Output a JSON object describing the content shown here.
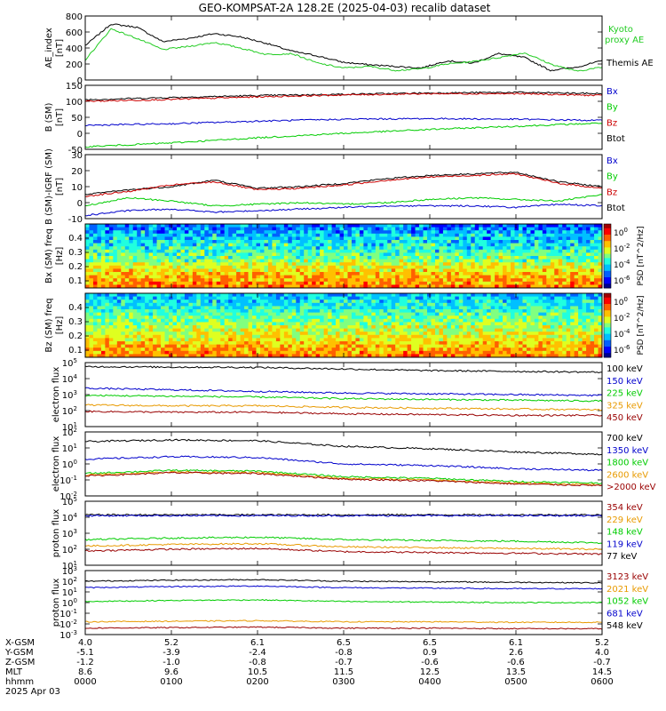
{
  "title": "GEO-KOMPSAT-2A 128.2E (2025-04-03) recalib dataset",
  "colors": {
    "black": "#000000",
    "green": "#00cc00",
    "blue": "#0000cc",
    "red": "#cc0000",
    "orange": "#e89a00",
    "darkred": "#990000",
    "lime": "#00dd44"
  },
  "chart_data": [
    {
      "type": "line",
      "ylabel": "AE_index [nT]",
      "ylim": [
        0,
        800
      ],
      "yticks": [
        "800",
        "600",
        "400",
        "200",
        "0"
      ],
      "legend": [
        {
          "name": "Kyoto proxy AE",
          "color": "#22cc22"
        },
        {
          "name": "Themis AE",
          "color": "#000000"
        }
      ],
      "series": [
        {
          "name": "Themis AE",
          "x": [
            0,
            0.3,
            0.6,
            0.9,
            1.2,
            1.5,
            1.8,
            2.1,
            2.4,
            2.7,
            3.0,
            3.3,
            3.6,
            3.9,
            4.2,
            4.5,
            4.8,
            5.1,
            5.4,
            5.7,
            6.0
          ],
          "values": [
            430,
            700,
            660,
            480,
            520,
            580,
            540,
            460,
            360,
            300,
            220,
            190,
            170,
            150,
            240,
            210,
            330,
            280,
            120,
            160,
            240
          ]
        },
        {
          "name": "Kyoto proxy AE",
          "x": [
            0,
            0.3,
            0.6,
            0.9,
            1.2,
            1.5,
            1.8,
            2.1,
            2.4,
            2.7,
            3.0,
            3.3,
            3.6,
            3.9,
            4.2,
            4.5,
            4.8,
            5.1,
            5.4,
            5.7,
            6.0
          ],
          "values": [
            250,
            640,
            520,
            380,
            420,
            470,
            400,
            320,
            330,
            210,
            150,
            170,
            120,
            140,
            200,
            230,
            280,
            340,
            200,
            110,
            160
          ]
        }
      ]
    },
    {
      "type": "line",
      "ylabel": "B (SM) [nT]",
      "ylim": [
        -50,
        150
      ],
      "yticks": [
        "150",
        "100",
        "50",
        "0",
        "-50"
      ],
      "legend": [
        {
          "name": "Bx",
          "color": "#0000cc"
        },
        {
          "name": "By",
          "color": "#00cc00"
        },
        {
          "name": "Bz",
          "color": "#cc0000"
        },
        {
          "name": "Btot",
          "color": "#000000"
        }
      ],
      "series": [
        {
          "name": "Btot",
          "x": [
            0,
            1,
            2,
            3,
            4,
            5,
            6
          ],
          "values": [
            105,
            112,
            118,
            122,
            126,
            128,
            124
          ]
        },
        {
          "name": "Bz",
          "x": [
            0,
            1,
            2,
            3,
            4,
            5,
            6
          ],
          "values": [
            100,
            106,
            114,
            120,
            124,
            124,
            118
          ]
        },
        {
          "name": "Bx",
          "x": [
            0,
            1,
            2,
            3,
            4,
            5,
            6
          ],
          "values": [
            25,
            30,
            38,
            44,
            46,
            44,
            40
          ]
        },
        {
          "name": "By",
          "x": [
            0,
            1,
            2,
            3,
            4,
            5,
            6
          ],
          "values": [
            -42,
            -30,
            -14,
            0,
            12,
            22,
            32
          ]
        }
      ]
    },
    {
      "type": "line",
      "ylabel": "B (SM)-IGRF (SM) [nT]",
      "ylim": [
        -10,
        30
      ],
      "yticks": [
        "30",
        "20",
        "10",
        "0",
        "-10"
      ],
      "legend": [
        {
          "name": "Bx",
          "color": "#0000cc"
        },
        {
          "name": "By",
          "color": "#00cc00"
        },
        {
          "name": "Bz",
          "color": "#cc0000"
        },
        {
          "name": "Btot",
          "color": "#000000"
        }
      ],
      "series": [
        {
          "name": "Btot",
          "x": [
            0,
            0.5,
            1,
            1.5,
            2,
            2.5,
            3,
            3.5,
            4,
            4.5,
            5,
            5.5,
            6
          ],
          "values": [
            5,
            8,
            10,
            14,
            9,
            10,
            12,
            15,
            17,
            18,
            19,
            13,
            10
          ]
        },
        {
          "name": "Bz",
          "x": [
            0,
            0.5,
            1,
            1.5,
            2,
            2.5,
            3,
            3.5,
            4,
            4.5,
            5,
            5.5,
            6
          ],
          "values": [
            4,
            7,
            11,
            13,
            8,
            9,
            11,
            14,
            16,
            17,
            18,
            12,
            9
          ]
        },
        {
          "name": "By",
          "x": [
            0,
            0.5,
            1,
            1.5,
            2,
            2.5,
            3,
            3.5,
            4,
            4.5,
            5,
            5.5,
            6
          ],
          "values": [
            -2,
            3,
            1,
            -2,
            -1,
            0,
            -1,
            0,
            2,
            3,
            2,
            1,
            5
          ]
        },
        {
          "name": "Bx",
          "x": [
            0,
            0.5,
            1,
            1.5,
            2,
            2.5,
            3,
            3.5,
            4,
            4.5,
            5,
            5.5,
            6
          ],
          "values": [
            -8,
            -5,
            -4,
            -6,
            -5,
            -4,
            -3,
            -2,
            -2,
            -2,
            -3,
            -1,
            -2
          ]
        }
      ]
    },
    {
      "type": "heatmap",
      "ylabel": "Bx (SM) freq [Hz]",
      "ylim": [
        0.05,
        0.5
      ],
      "yticks": [
        "0.4",
        "0.3",
        "0.2",
        "0.1"
      ],
      "colorbar": {
        "label": "PSD [nT^2/Hz]",
        "ticks": [
          "10^0",
          "10^-2",
          "10^-4",
          "10^-6"
        ]
      }
    },
    {
      "type": "heatmap",
      "ylabel": "Bz (SM) freq [Hz]",
      "ylim": [
        0.05,
        0.5
      ],
      "yticks": [
        "0.4",
        "0.3",
        "0.2",
        "0.1"
      ],
      "colorbar": {
        "label": "PSD [nT^2/Hz]",
        "ticks": [
          "10^0",
          "10^-2",
          "10^-4",
          "10^-6"
        ]
      }
    },
    {
      "type": "line",
      "ylabel": "electron flux",
      "scale": "log",
      "ylim_exp": [
        1,
        5
      ],
      "yticks": [
        "10^5",
        "10^4",
        "10^3",
        "10^2",
        "10^1"
      ],
      "legend": [
        {
          "name": "100 keV",
          "color": "#000000"
        },
        {
          "name": "150 keV",
          "color": "#0000cc"
        },
        {
          "name": "225 keV",
          "color": "#00cc00"
        },
        {
          "name": "325 keV",
          "color": "#e89a00"
        },
        {
          "name": "450 keV",
          "color": "#990000"
        }
      ],
      "series": [
        {
          "name": "100 keV",
          "x": [
            0,
            1,
            2,
            3,
            4,
            5,
            6
          ],
          "log_values": [
            4.75,
            4.72,
            4.7,
            4.6,
            4.5,
            4.45,
            4.4
          ]
        },
        {
          "name": "150 keV",
          "x": [
            0,
            1,
            2,
            3,
            4,
            5,
            6
          ],
          "log_values": [
            3.4,
            3.3,
            3.2,
            3.1,
            3.05,
            3.0,
            2.95
          ]
        },
        {
          "name": "225 keV",
          "x": [
            0,
            1,
            2,
            3,
            4,
            5,
            6
          ],
          "log_values": [
            2.95,
            2.9,
            2.85,
            2.75,
            2.7,
            2.65,
            2.6
          ]
        },
        {
          "name": "325 keV",
          "x": [
            0,
            1,
            2,
            3,
            4,
            5,
            6
          ],
          "log_values": [
            2.35,
            2.3,
            2.3,
            2.2,
            2.15,
            2.1,
            2.05
          ]
        },
        {
          "name": "450 keV",
          "x": [
            0,
            1,
            2,
            3,
            4,
            5,
            6
          ],
          "log_values": [
            1.95,
            1.9,
            1.9,
            1.8,
            1.75,
            1.7,
            1.7
          ]
        }
      ]
    },
    {
      "type": "line",
      "ylabel": "electron flux",
      "scale": "log",
      "ylim_exp": [
        -2,
        2
      ],
      "yticks": [
        "10^2",
        "10^1",
        "10^0",
        "10^-1",
        "10^-2"
      ],
      "legend": [
        {
          "name": "700 keV",
          "color": "#000000"
        },
        {
          "name": "1350 keV",
          "color": "#0000cc"
        },
        {
          "name": "1800 keV",
          "color": "#00cc00"
        },
        {
          "name": "2600 keV",
          "color": "#e89a00"
        },
        {
          "name": ">2000 keV",
          "color": "#990000"
        }
      ],
      "series": [
        {
          "name": "700 keV",
          "x": [
            0,
            1,
            2,
            3,
            4,
            5,
            6
          ],
          "log_values": [
            1.4,
            1.5,
            1.45,
            1.1,
            0.95,
            0.75,
            0.6
          ]
        },
        {
          "name": "1350 keV",
          "x": [
            0,
            1,
            2,
            3,
            4,
            5,
            6
          ],
          "log_values": [
            0.3,
            0.45,
            0.4,
            0.0,
            -0.1,
            -0.3,
            -0.4
          ]
        },
        {
          "name": "1800 keV",
          "x": [
            0,
            1,
            2,
            3,
            4,
            5,
            6
          ],
          "log_values": [
            -0.6,
            -0.4,
            -0.45,
            -0.8,
            -0.9,
            -1.1,
            -1.2
          ]
        },
        {
          "name": "2600 keV",
          "x": [
            0,
            1,
            2,
            3,
            4,
            5,
            6
          ],
          "log_values": [
            -0.7,
            -0.5,
            -0.55,
            -0.9,
            -1.0,
            -1.2,
            -1.3
          ]
        },
        {
          "name": ">2000 keV",
          "x": [
            0,
            1,
            2,
            3,
            4,
            5,
            6
          ],
          "log_values": [
            -0.75,
            -0.55,
            -0.6,
            -0.95,
            -1.05,
            -1.25,
            -1.35
          ]
        }
      ]
    },
    {
      "type": "line",
      "ylabel": "proton flux",
      "scale": "log",
      "ylim_exp": [
        1,
        5
      ],
      "yticks": [
        "10^5",
        "10^4",
        "10^3",
        "10^2",
        "10^1"
      ],
      "legend": [
        {
          "name": "354 keV",
          "color": "#990000"
        },
        {
          "name": "229 keV",
          "color": "#e89a00"
        },
        {
          "name": "148 keV",
          "color": "#00cc00"
        },
        {
          "name": "119 keV",
          "color": "#0000cc"
        },
        {
          "name": "77 keV",
          "color": "#000000"
        }
      ],
      "series": [
        {
          "name": "77 keV",
          "x": [
            0,
            1,
            2,
            3,
            4,
            5,
            6
          ],
          "log_values": [
            4.15,
            4.15,
            4.15,
            4.15,
            4.15,
            4.15,
            4.15
          ]
        },
        {
          "name": "119 keV",
          "x": [
            0,
            1,
            2,
            3,
            4,
            5,
            6
          ],
          "log_values": [
            4.1,
            4.1,
            4.1,
            4.1,
            4.1,
            4.1,
            4.1
          ]
        },
        {
          "name": "148 keV",
          "x": [
            0,
            1,
            2,
            3,
            4,
            5,
            6
          ],
          "log_values": [
            2.6,
            2.7,
            2.75,
            2.6,
            2.55,
            2.5,
            2.4
          ]
        },
        {
          "name": "229 keV",
          "x": [
            0,
            1,
            2,
            3,
            4,
            5,
            6
          ],
          "log_values": [
            2.2,
            2.3,
            2.35,
            2.15,
            2.1,
            2.05,
            2.0
          ]
        },
        {
          "name": "354 keV",
          "x": [
            0,
            1,
            2,
            3,
            4,
            5,
            6
          ],
          "log_values": [
            1.9,
            2.0,
            2.05,
            1.85,
            1.8,
            1.75,
            1.7
          ]
        }
      ]
    },
    {
      "type": "line",
      "ylabel": "proton flux",
      "scale": "log",
      "ylim_exp": [
        -3,
        3
      ],
      "yticks": [
        "10^3",
        "10^2",
        "10^1",
        "10^0",
        "10^-1",
        "10^-2",
        "10^-3"
      ],
      "legend": [
        {
          "name": "3123 keV",
          "color": "#990000"
        },
        {
          "name": "2021 keV",
          "color": "#e89a00"
        },
        {
          "name": "1052 keV",
          "color": "#00cc00"
        },
        {
          "name": "681 keV",
          "color": "#0000cc"
        },
        {
          "name": "548 keV",
          "color": "#000000"
        }
      ],
      "series": [
        {
          "name": "548 keV",
          "x": [
            0,
            1,
            2,
            3,
            4,
            5,
            6
          ],
          "log_values": [
            2.0,
            2.1,
            2.15,
            2.0,
            1.95,
            1.9,
            1.85
          ]
        },
        {
          "name": "681 keV",
          "x": [
            0,
            1,
            2,
            3,
            4,
            5,
            6
          ],
          "log_values": [
            1.4,
            1.5,
            1.55,
            1.4,
            1.35,
            1.3,
            1.3
          ]
        },
        {
          "name": "1052 keV",
          "x": [
            0,
            1,
            2,
            3,
            4,
            5,
            6
          ],
          "log_values": [
            0.1,
            0.2,
            0.25,
            0.1,
            0.05,
            0.0,
            0.0
          ]
        },
        {
          "name": "2021 keV",
          "x": [
            0,
            1,
            2,
            3,
            4,
            5,
            6
          ],
          "log_values": [
            -1.8,
            -1.75,
            -1.7,
            -1.8,
            -1.8,
            -1.85,
            -1.85
          ]
        },
        {
          "name": "3123 keV",
          "x": [
            0,
            1,
            2,
            3,
            4,
            5,
            6
          ],
          "log_values": [
            -2.4,
            -2.35,
            -2.3,
            -2.4,
            -2.4,
            -2.45,
            -2.45
          ]
        }
      ]
    }
  ],
  "xaxis": {
    "row_labels": [
      "X-GSM",
      "Y-GSM",
      "Z-GSM",
      "MLT",
      "hhmm",
      "2025 Apr 03"
    ],
    "columns": [
      [
        "4.0",
        "-5.1",
        "-1.2",
        "8.6",
        "0000"
      ],
      [
        "5.2",
        "-3.9",
        "-1.0",
        "9.6",
        "0100"
      ],
      [
        "6.1",
        "-2.4",
        "-0.8",
        "10.5",
        "0200"
      ],
      [
        "6.5",
        "-0.8",
        "-0.7",
        "11.5",
        "0300"
      ],
      [
        "6.5",
        "0.9",
        "-0.6",
        "12.5",
        "0400"
      ],
      [
        "6.1",
        "2.6",
        "-0.6",
        "13.5",
        "0500"
      ],
      [
        "5.2",
        "4.0",
        "-0.7",
        "14.5",
        "0600"
      ]
    ]
  }
}
